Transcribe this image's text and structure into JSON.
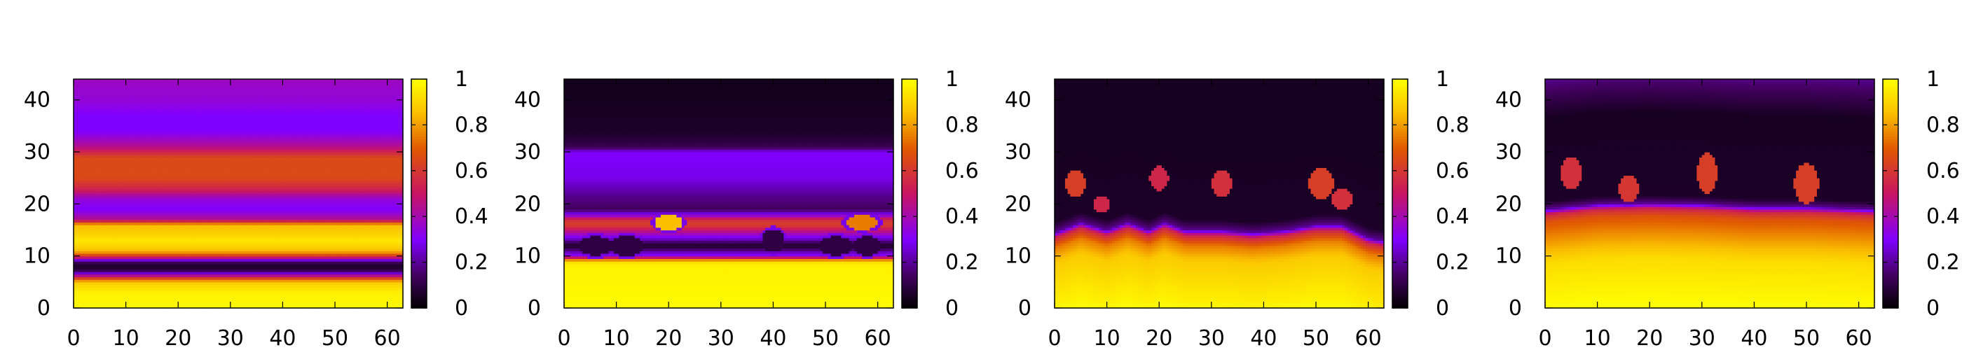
{
  "chart_data": [
    {
      "type": "heatmap",
      "title": "",
      "xlabel": "",
      "ylabel": "",
      "xlim": [
        0,
        63
      ],
      "ylim": [
        0,
        44
      ],
      "x_ticks": [
        "0",
        "10",
        "20",
        "30",
        "40",
        "50",
        "60"
      ],
      "y_ticks": [
        "0",
        "10",
        "20",
        "30",
        "40"
      ],
      "colorbar_ticks": [
        "0",
        "0.2",
        "0.4",
        "0.6",
        "0.8",
        "1"
      ],
      "colorbar_range": [
        0,
        1
      ],
      "pattern": "horizontal-bands",
      "profile": [
        [
          0,
          0.98
        ],
        [
          3,
          0.97
        ],
        [
          5,
          0.88
        ],
        [
          6,
          0.55
        ],
        [
          7,
          0.15
        ],
        [
          8,
          0.05
        ],
        [
          9,
          0.15
        ],
        [
          10,
          0.6
        ],
        [
          11,
          0.85
        ],
        [
          12,
          0.9
        ],
        [
          13,
          0.95
        ],
        [
          14,
          0.9
        ],
        [
          16,
          0.85
        ],
        [
          17,
          0.45
        ],
        [
          19,
          0.3
        ],
        [
          21,
          0.35
        ],
        [
          23,
          0.55
        ],
        [
          25,
          0.65
        ],
        [
          29,
          0.65
        ],
        [
          31,
          0.45
        ],
        [
          34,
          0.3
        ],
        [
          37,
          0.3
        ],
        [
          40,
          0.35
        ],
        [
          44,
          0.38
        ]
      ]
    },
    {
      "type": "heatmap",
      "title": "",
      "xlabel": "",
      "ylabel": "",
      "xlim": [
        0,
        63
      ],
      "ylim": [
        0,
        44
      ],
      "x_ticks": [
        "0",
        "10",
        "20",
        "30",
        "40",
        "50",
        "60"
      ],
      "y_ticks": [
        "0",
        "10",
        "20",
        "30",
        "40"
      ],
      "colorbar_ticks": [
        "0",
        "0.2",
        "0.4",
        "0.6",
        "0.8",
        "1"
      ],
      "colorbar_range": [
        0,
        1
      ],
      "pattern": "bubbles",
      "profile": [
        [
          0,
          0.99
        ],
        [
          8,
          0.97
        ],
        [
          9,
          0.92
        ],
        [
          10,
          0.35
        ],
        [
          12,
          0.05
        ],
        [
          14,
          0.35
        ],
        [
          16,
          0.62
        ],
        [
          17,
          0.58
        ],
        [
          18,
          0.3
        ],
        [
          19,
          0.14
        ],
        [
          22,
          0.2
        ],
        [
          25,
          0.28
        ],
        [
          30,
          0.3
        ],
        [
          31,
          0.12
        ],
        [
          34,
          0.06
        ],
        [
          44,
          0.04
        ]
      ],
      "blobs": [
        [
          6,
          12,
          4,
          2.4,
          0.1
        ],
        [
          12,
          12,
          4,
          2.5,
          0.1
        ],
        [
          20,
          16.5,
          3.5,
          2,
          0.85
        ],
        [
          40,
          13,
          2.8,
          2.8,
          0.1
        ],
        [
          52,
          12,
          4.5,
          2.4,
          0.1
        ],
        [
          58,
          12,
          3.5,
          2.4,
          0.1
        ],
        [
          57,
          16.5,
          4,
          1.8,
          0.75
        ]
      ]
    },
    {
      "type": "heatmap",
      "title": "",
      "xlabel": "",
      "ylabel": "",
      "xlim": [
        0,
        63
      ],
      "ylim": [
        0,
        44
      ],
      "x_ticks": [
        "0",
        "10",
        "20",
        "30",
        "40",
        "50",
        "60"
      ],
      "y_ticks": [
        "0",
        "10",
        "20",
        "30",
        "40"
      ],
      "colorbar_ticks": [
        "0",
        "0.2",
        "0.4",
        "0.6",
        "0.8",
        "1"
      ],
      "colorbar_range": [
        0,
        1
      ],
      "pattern": "fingers",
      "profile": [
        [
          0,
          0.99
        ],
        [
          10,
          0.88
        ],
        [
          13,
          0.75
        ],
        [
          15,
          0.55
        ],
        [
          16,
          0.2
        ],
        [
          18,
          0.06
        ],
        [
          30,
          0.05
        ],
        [
          44,
          0.05
        ]
      ],
      "front": [
        [
          0,
          15.5
        ],
        [
          5,
          17.5
        ],
        [
          10,
          16
        ],
        [
          14,
          17.5
        ],
        [
          18,
          16
        ],
        [
          21,
          17.5
        ],
        [
          25,
          16
        ],
        [
          32,
          16
        ],
        [
          38,
          15.5
        ],
        [
          44,
          16
        ],
        [
          50,
          17
        ],
        [
          55,
          17
        ],
        [
          60,
          14.5
        ],
        [
          63,
          14
        ]
      ],
      "blobs": [
        [
          4,
          24,
          2.5,
          3.5,
          0.62
        ],
        [
          9,
          20,
          2.2,
          2.2,
          0.55
        ],
        [
          20,
          25,
          2.3,
          3,
          0.55
        ],
        [
          32,
          24,
          2.5,
          3.5,
          0.58
        ],
        [
          51,
          24,
          3,
          4,
          0.62
        ],
        [
          55,
          21,
          2.5,
          2.5,
          0.58
        ]
      ]
    },
    {
      "type": "heatmap",
      "title": "",
      "xlabel": "",
      "ylabel": "",
      "xlim": [
        0,
        63
      ],
      "ylim": [
        0,
        44
      ],
      "x_ticks": [
        "0",
        "10",
        "20",
        "30",
        "40",
        "50",
        "60"
      ],
      "y_ticks": [
        "0",
        "10",
        "20",
        "30",
        "40"
      ],
      "colorbar_ticks": [
        "0",
        "0.2",
        "0.4",
        "0.6",
        "0.8",
        "1"
      ],
      "colorbar_range": [
        0,
        1
      ],
      "pattern": "plumes",
      "profile": [
        [
          0,
          0.99
        ],
        [
          8,
          0.92
        ],
        [
          12,
          0.8
        ],
        [
          16,
          0.68
        ],
        [
          17.5,
          0.55
        ],
        [
          18.5,
          0.2
        ],
        [
          20,
          0.06
        ],
        [
          36,
          0.05
        ],
        [
          40,
          0.12
        ],
        [
          44,
          0.2
        ]
      ],
      "front": [
        [
          0,
          17.5
        ],
        [
          10,
          18.5
        ],
        [
          20,
          18.7
        ],
        [
          30,
          18.5
        ],
        [
          40,
          18
        ],
        [
          50,
          18
        ],
        [
          63,
          17.5
        ]
      ],
      "blobs": [
        [
          5,
          26,
          2.5,
          4,
          0.58
        ],
        [
          16,
          23,
          2.5,
          3.5,
          0.6
        ],
        [
          31,
          26,
          2.5,
          5,
          0.62
        ],
        [
          50,
          24,
          3,
          5,
          0.62
        ]
      ]
    }
  ]
}
